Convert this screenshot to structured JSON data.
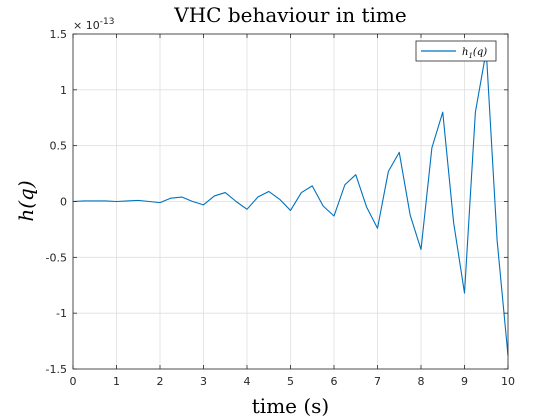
{
  "chart_data": {
    "type": "line",
    "title": "VHC behaviour in time",
    "xlabel": "time (s)",
    "ylabel": "h(q)",
    "y_exponent": "× 10^-13",
    "y_exponent_base": "× 10",
    "y_exponent_power": "-13",
    "xlim": [
      0,
      10
    ],
    "ylim": [
      -1.5,
      1.5
    ],
    "xticks": [
      0,
      1,
      2,
      3,
      4,
      5,
      6,
      7,
      8,
      9,
      10
    ],
    "yticks": [
      -1.5,
      -1,
      -0.5,
      0,
      0.5,
      1,
      1.5
    ],
    "xtick_labels": [
      "0",
      "1",
      "2",
      "3",
      "4",
      "5",
      "6",
      "7",
      "8",
      "9",
      "10"
    ],
    "ytick_labels": [
      "-1.5",
      "-1",
      "-0.5",
      "0",
      "0.5",
      "1",
      "1.5"
    ],
    "grid": true,
    "legend": "top-right",
    "series": [
      {
        "name": "h_1(q)",
        "legend_label_main": "h",
        "legend_label_sub": "1",
        "legend_label_arg": "(q)",
        "color": "#0072BD",
        "x": [
          0,
          0.25,
          0.5,
          0.75,
          1,
          1.25,
          1.5,
          1.75,
          2,
          2.25,
          2.5,
          2.75,
          3,
          3.25,
          3.5,
          3.75,
          4,
          4.25,
          4.5,
          4.75,
          5,
          5.25,
          5.5,
          5.75,
          6,
          6.25,
          6.5,
          6.75,
          7,
          7.25,
          7.5,
          7.75,
          8,
          8.25,
          8.5,
          8.75,
          9,
          9.25,
          9.5,
          9.75,
          10
        ],
        "y": [
          0,
          0.005,
          0.005,
          0.005,
          0,
          0.005,
          0.01,
          0,
          -0.01,
          0.03,
          0.04,
          0,
          -0.03,
          0.05,
          0.08,
          0,
          -0.07,
          0.04,
          0.09,
          0.02,
          -0.08,
          0.08,
          0.14,
          -0.04,
          -0.13,
          0.15,
          0.24,
          -0.05,
          -0.24,
          0.27,
          0.44,
          -0.12,
          -0.43,
          0.48,
          0.8,
          -0.19,
          -0.82,
          0.8,
          1.35,
          -0.35,
          -1.38
        ]
      }
    ]
  }
}
